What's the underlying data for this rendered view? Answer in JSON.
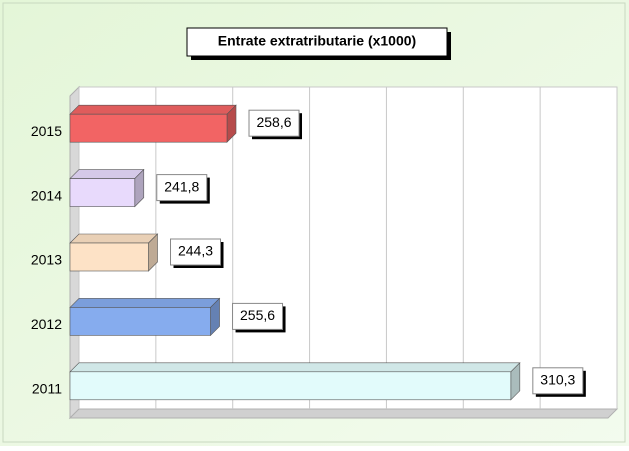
{
  "chart_data": {
    "type": "bar",
    "orientation": "horizontal",
    "title": "Entrate extratributarie (x1000)",
    "categories": [
      "2015",
      "2014",
      "2013",
      "2012",
      "2011"
    ],
    "values": [
      258.6,
      241.8,
      244.3,
      255.6,
      310.3
    ],
    "value_labels": [
      "258,6",
      "241,8",
      "244,3",
      "255,6",
      "310,3"
    ],
    "colors": [
      "#f26464",
      "#e8dafc",
      "#fde2c6",
      "#86acee",
      "#e2fbfb"
    ],
    "xlim": [
      230,
      328
    ],
    "xticks": [
      230,
      244,
      258,
      272,
      286,
      300,
      314,
      328
    ],
    "grid": true
  }
}
